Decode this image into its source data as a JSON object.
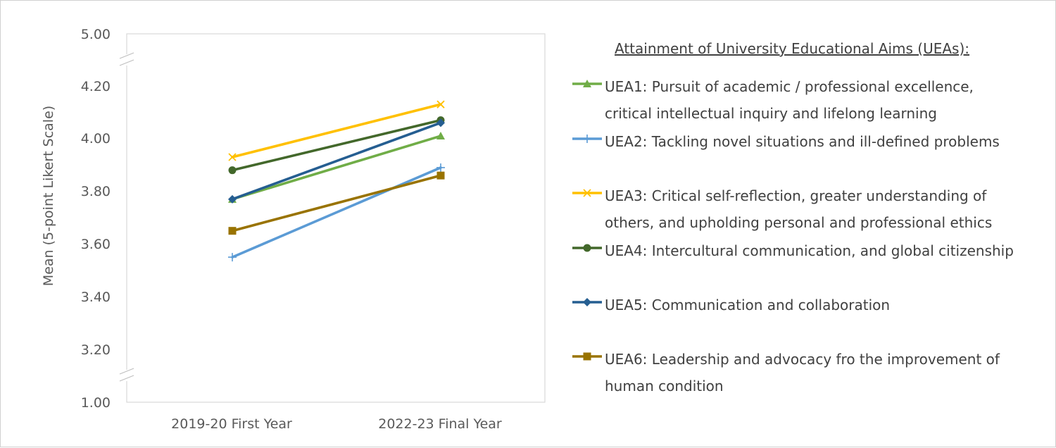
{
  "chart_data": {
    "type": "line",
    "title": "",
    "xlabel": "",
    "ylabel": "Mean (5-point Likert Scale)",
    "categories": [
      "2019-20 First Year",
      "2022-23 Final Year"
    ],
    "y_ticks": [
      "1.00",
      "3.20",
      "3.40",
      "3.60",
      "3.80",
      "4.00",
      "4.20",
      "5.00"
    ],
    "axis_breaks": [
      "between 1.00 and 3.20",
      "between 4.20 and 5.00"
    ],
    "grid": false,
    "legend_position": "right",
    "legend_title": "Attainment of University Educational Aims (UEAs):",
    "series": [
      {
        "name": "UEA1: Pursuit of academic / professional excellence,\ncritical intellectual inquiry and lifelong learning",
        "values": [
          3.77,
          4.01
        ],
        "color": "#70ad47",
        "marker": "triangle"
      },
      {
        "name": "UEA2: Tackling novel situations and ill-defined problems",
        "values": [
          3.55,
          3.89
        ],
        "color": "#5b9bd5",
        "marker": "plus"
      },
      {
        "name": "UEA3: Critical self-reflection, greater understanding of\nothers, and upholding personal and professional ethics",
        "values": [
          3.93,
          4.13
        ],
        "color": "#ffc000",
        "marker": "x"
      },
      {
        "name": "UEA4: Intercultural communication, and global citizenship",
        "values": [
          3.88,
          4.07
        ],
        "color": "#43682b",
        "marker": "circle"
      },
      {
        "name": "UEA5: Communication and collaboration",
        "values": [
          3.77,
          4.06
        ],
        "color": "#255e91",
        "marker": "diamond"
      },
      {
        "name": "UEA6: Leadership and advocacy fro the improvement of\nhuman condition",
        "values": [
          3.65,
          3.86
        ],
        "color": "#997300",
        "marker": "square"
      }
    ]
  }
}
